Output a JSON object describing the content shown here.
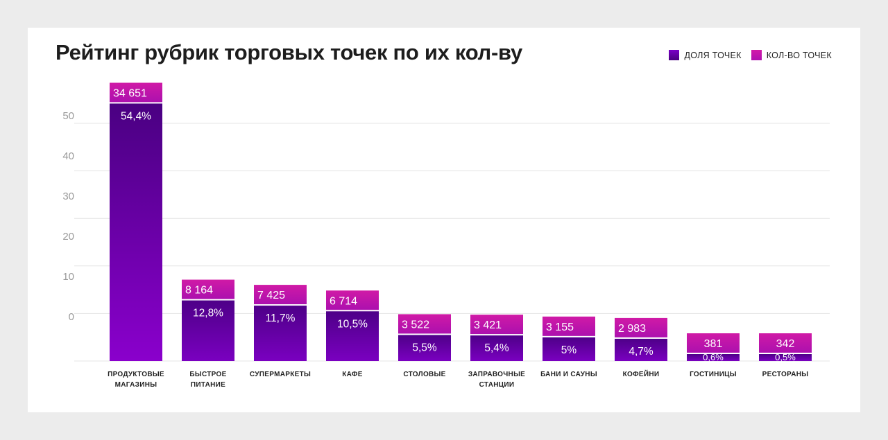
{
  "chart_data": {
    "type": "bar",
    "title": "Рейтинг рубрик торговых точек по их кол-ву",
    "xlabel": "",
    "ylabel": "",
    "ylim": [
      0,
      55
    ],
    "yticks": [
      "50",
      "40",
      "30",
      "20",
      "10",
      "0"
    ],
    "grid": true,
    "legend_position": "top-right",
    "legend": [
      {
        "name": "ДОЛЯ ТОЧЕК",
        "color": "#5a0096"
      },
      {
        "name": "КОЛ-ВО ТОЧЕК",
        "color": "#c4149e"
      }
    ],
    "categories": [
      [
        "ПРОДУКТОВЫЕ",
        "МАГАЗИНЫ"
      ],
      [
        "БЫСТРОЕ",
        "ПИТАНИЕ"
      ],
      [
        "СУПЕРМАРКЕТЫ"
      ],
      [
        "КАФЕ"
      ],
      [
        "СТОЛОВЫЕ"
      ],
      [
        "ЗАПРАВОЧНЫЕ",
        "СТАНЦИИ"
      ],
      [
        "БАНИ И САУНЫ"
      ],
      [
        "КОФЕЙНИ"
      ],
      [
        "ГОСТИНИЦЫ"
      ],
      [
        "РЕСТОРАНЫ"
      ]
    ],
    "series": [
      {
        "name": "ДОЛЯ ТОЧЕК",
        "values": [
          54.4,
          12.8,
          11.7,
          10.5,
          5.5,
          5.4,
          5.0,
          4.7,
          0.6,
          0.5
        ],
        "labels": [
          "54,4%",
          "12,8%",
          "11,7%",
          "10,5%",
          "5,5%",
          "5,4%",
          "5%",
          "4,7%",
          "0,6%",
          "0,5%"
        ]
      },
      {
        "name": "КОЛ-ВО ТОЧЕК",
        "values": [
          34651,
          8164,
          7425,
          6714,
          3522,
          3421,
          3155,
          2983,
          381,
          342
        ],
        "labels": [
          "34 651",
          "8 164",
          "7 425",
          "6 714",
          "3 522",
          "3 421",
          "3 155",
          "2 983",
          "381",
          "342"
        ]
      }
    ]
  }
}
